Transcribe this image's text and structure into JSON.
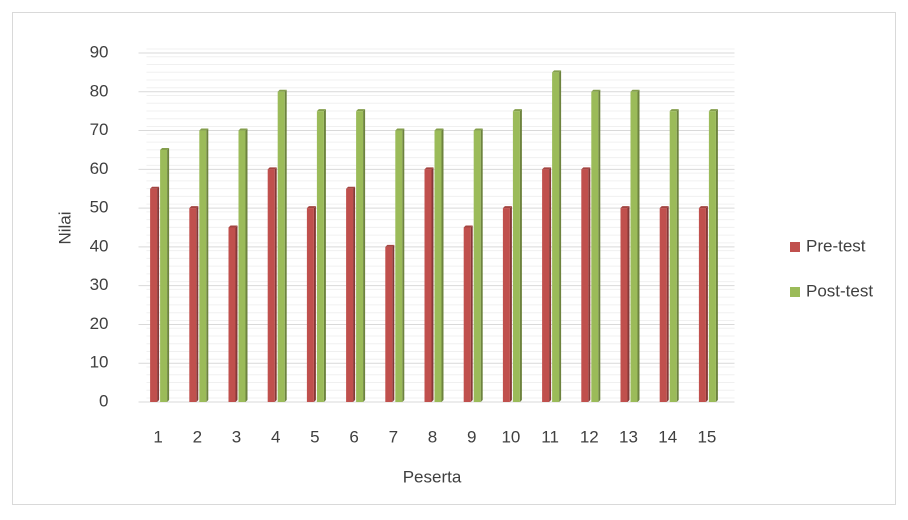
{
  "chart_data": {
    "type": "bar",
    "x_label": "Peserta",
    "y_label": "Nilai",
    "categories": [
      "1",
      "2",
      "3",
      "4",
      "5",
      "6",
      "7",
      "8",
      "9",
      "10",
      "11",
      "12",
      "13",
      "14",
      "15"
    ],
    "series": [
      {
        "name": "Pre-test",
        "color": "#c0504d",
        "values": [
          55,
          50,
          45,
          60,
          50,
          55,
          40,
          60,
          45,
          50,
          60,
          60,
          50,
          50,
          50
        ]
      },
      {
        "name": "Post-test",
        "color": "#9bbb59",
        "values": [
          65,
          70,
          70,
          80,
          75,
          75,
          70,
          70,
          70,
          75,
          85,
          80,
          80,
          75,
          75
        ]
      }
    ],
    "ylim": [
      0,
      90
    ],
    "yticks": [
      0,
      10,
      20,
      30,
      40,
      50,
      60,
      70,
      80,
      90
    ],
    "grid": true,
    "legend": "right"
  }
}
